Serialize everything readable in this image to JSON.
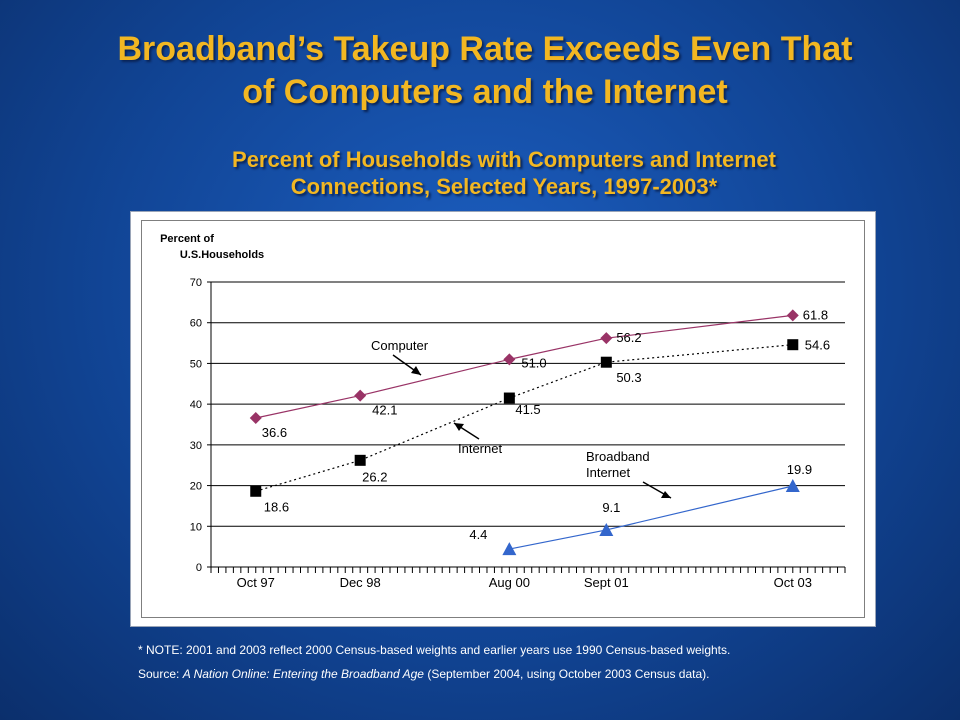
{
  "slide": {
    "title_line1": "Broadband’s Takeup Rate Exceeds Even That",
    "title_line2": "of Computers and the Internet",
    "chart_title_line1": "Percent of Households with Computers and Internet",
    "chart_title_line2": "Connections, Selected Years, 1997-2003*",
    "note": "* NOTE: 2001 and 2003 reflect 2000 Census-based weights and earlier years use 1990 Census-based weights.",
    "source_prefix": "Source: ",
    "source_title": "A Nation Online: Entering the Broadband Age",
    "source_suffix": " (September 2004, using October 2003 Census data).",
    "colors": {
      "background": "#114596",
      "title": "#f2b722",
      "computer": "#993366",
      "internet": "#000000",
      "broadband": "#3366cc"
    }
  },
  "chart_data": {
    "type": "line",
    "ylabel_line1": "Percent of",
    "ylabel_line2": "U.S.Households",
    "ylim": [
      0,
      70
    ],
    "yticks": [
      0,
      10,
      20,
      30,
      40,
      50,
      60,
      70
    ],
    "xlim": [
      "1997-04",
      "2004-05"
    ],
    "xticks": [
      {
        "label": "Oct 97",
        "x": "1997-10"
      },
      {
        "label": "Dec 98",
        "x": "1998-12"
      },
      {
        "label": "Aug 00",
        "x": "2000-08"
      },
      {
        "label": "Sept 01",
        "x": "2001-09"
      },
      {
        "label": "Oct 03",
        "x": "2003-10"
      }
    ],
    "grid": true,
    "series": [
      {
        "name": "Computer",
        "color": "#993366",
        "marker": "diamond",
        "line_style": "solid",
        "x": [
          "1997-10",
          "1998-12",
          "2000-08",
          "2001-09",
          "2003-10"
        ],
        "values": [
          36.6,
          42.1,
          51.0,
          56.2,
          61.8
        ],
        "labels": [
          "36.6",
          "42.1",
          "51.0",
          "56.2",
          "61.8"
        ]
      },
      {
        "name": "Internet",
        "color": "#000000",
        "marker": "square",
        "line_style": "dotted",
        "x": [
          "1997-10",
          "1998-12",
          "2000-08",
          "2001-09",
          "2003-10"
        ],
        "values": [
          18.6,
          26.2,
          41.5,
          50.3,
          54.6
        ],
        "labels": [
          "18.6",
          "26.2",
          "41.5",
          "50.3",
          "54.6"
        ]
      },
      {
        "name": "Broadband Internet",
        "color": "#3366cc",
        "marker": "triangle",
        "line_style": "solid",
        "x": [
          "2000-08",
          "2001-09",
          "2003-10"
        ],
        "values": [
          4.4,
          9.1,
          19.9
        ],
        "labels": [
          "4.4",
          "9.1",
          "19.9"
        ]
      }
    ],
    "annotations": [
      {
        "series": 0,
        "text": "Computer"
      },
      {
        "series": 1,
        "text": "Internet"
      },
      {
        "series": 2,
        "text_line1": "Broadband",
        "text_line2": "Internet"
      }
    ]
  }
}
